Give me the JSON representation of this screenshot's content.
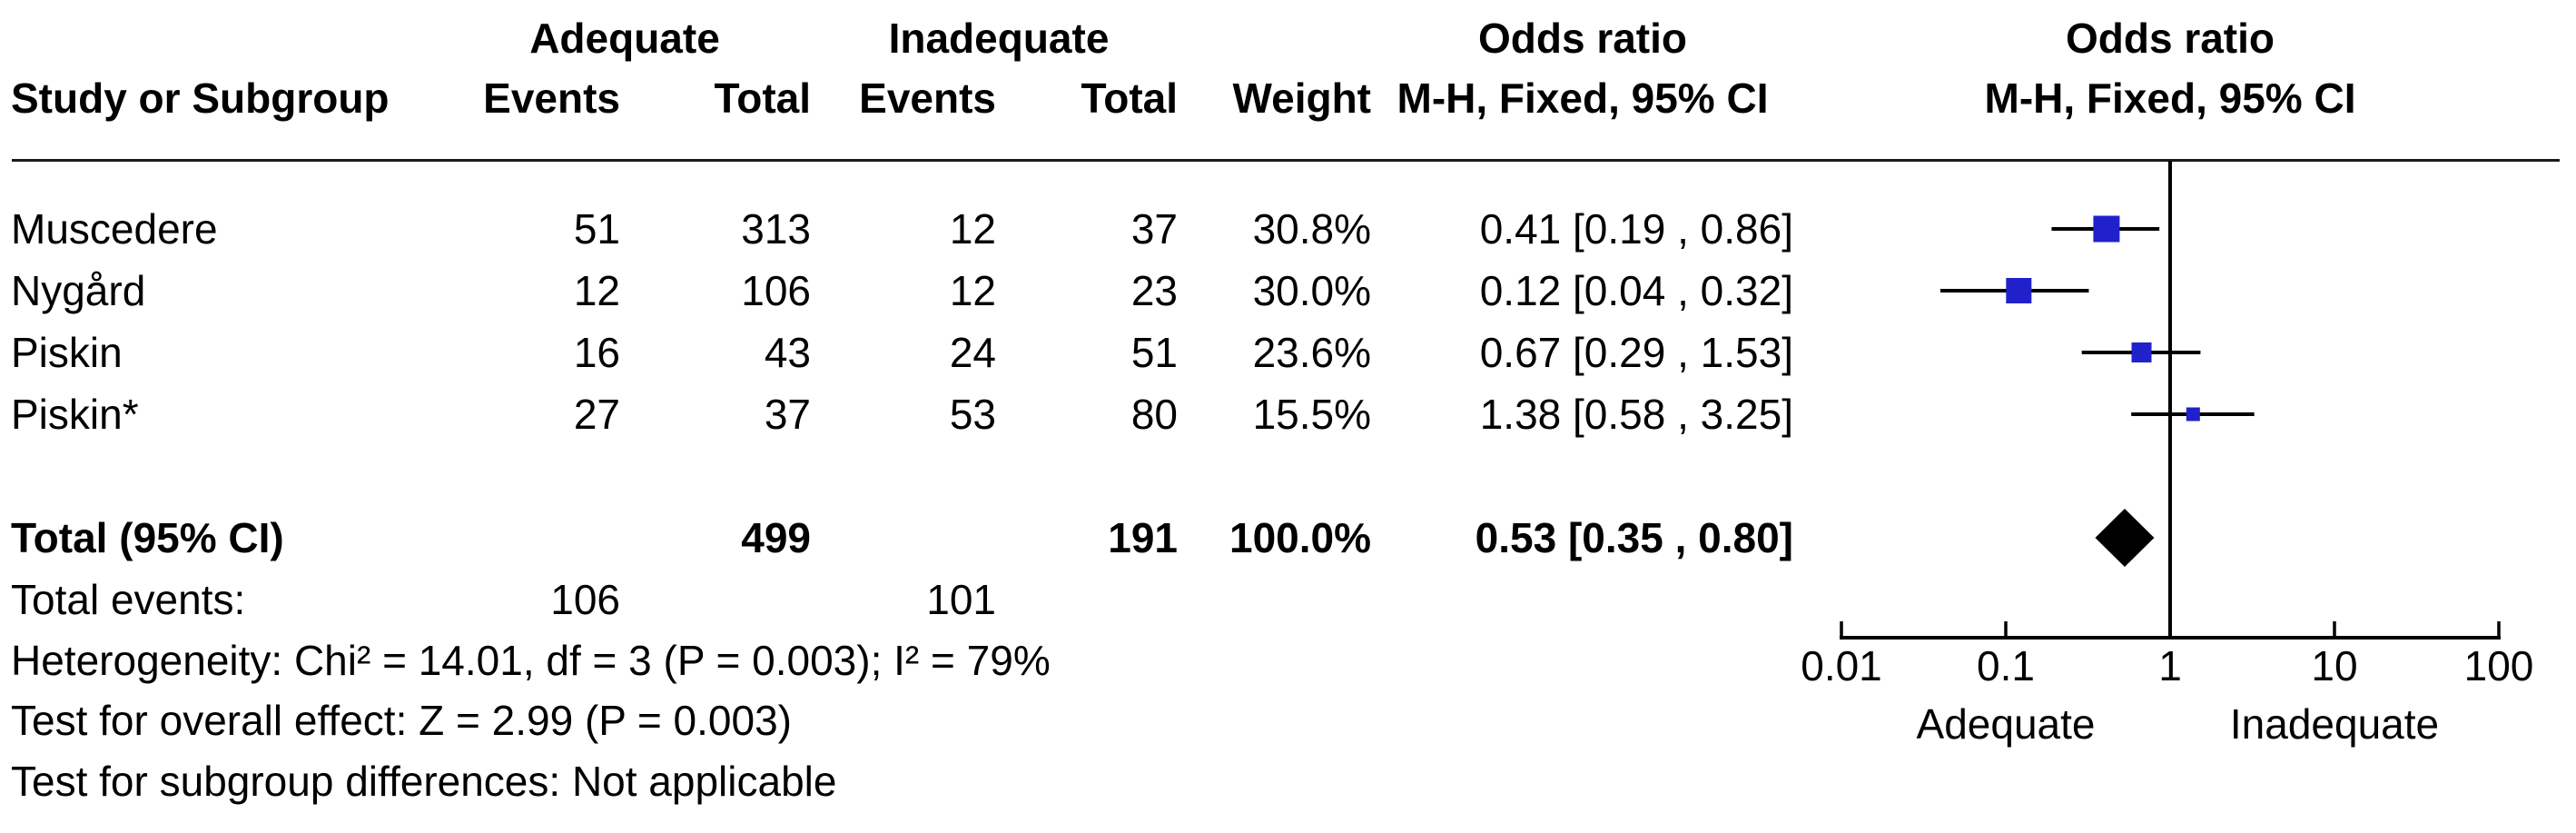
{
  "header": {
    "group_adequate": "Adequate",
    "group_inadequate": "Inadequate",
    "or_col_title": "Odds ratio",
    "or_plot_title": "Odds ratio",
    "study_col": "Study or Subgroup",
    "adequate_events_col": "Events",
    "adequate_total_col": "Total",
    "inadequate_events_col": "Events",
    "inadequate_total_col": "Total",
    "weight_col": "Weight",
    "method_col": "M-H, Fixed, 95% CI",
    "method_plot_col": "M-H, Fixed, 95% CI"
  },
  "table": {
    "studies": [
      {
        "name": "Muscedere",
        "adequate_events": "51",
        "adequate_total": "313",
        "inadequate_events": "12",
        "inadequate_total": "37",
        "weight": "30.8%",
        "or_ci": "0.41 [0.19 , 0.86]"
      },
      {
        "name": "Nygård",
        "adequate_events": "12",
        "adequate_total": "106",
        "inadequate_events": "12",
        "inadequate_total": "23",
        "weight": "30.0%",
        "or_ci": "0.12 [0.04 , 0.32]"
      },
      {
        "name": "Piskin",
        "adequate_events": "16",
        "adequate_total": "43",
        "inadequate_events": "24",
        "inadequate_total": "51",
        "weight": "23.6%",
        "or_ci": "0.67 [0.29 , 1.53]"
      },
      {
        "name": "Piskin*",
        "adequate_events": "27",
        "adequate_total": "37",
        "inadequate_events": "53",
        "inadequate_total": "80",
        "weight": "15.5%",
        "or_ci": "1.38 [0.58 , 3.25]"
      }
    ],
    "total_row": {
      "label": "Total (95% CI)",
      "adequate_total": "499",
      "inadequate_total": "191",
      "weight": "100.0%",
      "or_ci": "0.53 [0.35 , 0.80]"
    },
    "total_events_row": {
      "label": "Total events:",
      "adequate_events": "106",
      "inadequate_events": "101"
    },
    "footnotes": [
      "Heterogeneity: Chi² = 14.01, df = 3 (P = 0.003); I² = 79%",
      "Test for overall effect: Z = 2.99 (P = 0.003)",
      "Test for subgroup differences: Not applicable"
    ]
  },
  "chart_data": {
    "type": "forest",
    "effect_measure": "Odds ratio",
    "method": "M-H, Fixed, 95% CI",
    "x_scale": "log10",
    "x_ticks": [
      0.01,
      0.1,
      1,
      10,
      100
    ],
    "x_tick_labels": [
      "0.01",
      "0.1",
      "1",
      "10",
      "100"
    ],
    "x_range": [
      0.01,
      100
    ],
    "reference_line": 1,
    "favours_left_label": "Adequate",
    "favours_right_label": "Inadequate",
    "marker_color": "#2121cc",
    "diamond_color": "#000000",
    "line_color": "#000000",
    "studies": [
      {
        "name": "Muscedere",
        "or": 0.41,
        "ci_low": 0.19,
        "ci_high": 0.86,
        "weight_pct": 30.8
      },
      {
        "name": "Nygård",
        "or": 0.12,
        "ci_low": 0.04,
        "ci_high": 0.32,
        "weight_pct": 30.0
      },
      {
        "name": "Piskin",
        "or": 0.67,
        "ci_low": 0.29,
        "ci_high": 1.53,
        "weight_pct": 23.6
      },
      {
        "name": "Piskin*",
        "or": 1.38,
        "ci_low": 0.58,
        "ci_high": 3.25,
        "weight_pct": 15.5
      }
    ],
    "total": {
      "or": 0.53,
      "ci_low": 0.35,
      "ci_high": 0.8,
      "weight_pct": 100.0
    }
  }
}
